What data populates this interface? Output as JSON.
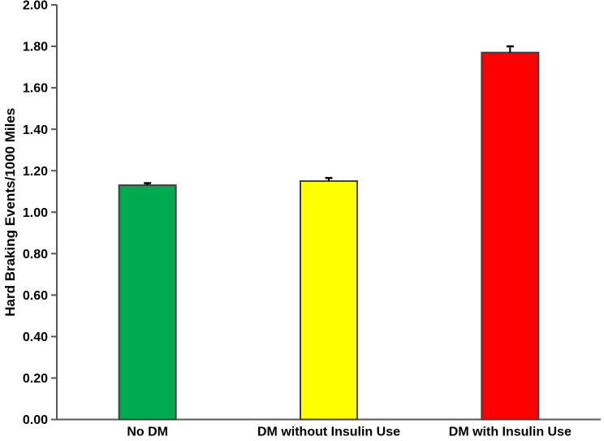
{
  "chart_data": {
    "type": "bar",
    "title": "",
    "xlabel": "",
    "ylabel": "Hard Braking Events/1000 Miles",
    "categories": [
      "No DM",
      "DM without Insulin Use",
      "DM with Insulin Use"
    ],
    "values": [
      1.13,
      1.15,
      1.77
    ],
    "errors_upper": [
      0.01,
      0.015,
      0.03
    ],
    "bar_colors": [
      "#00AB50",
      "#FFFF00",
      "#FF0000"
    ],
    "bar_border_color": "#404040",
    "axis_color": "#595959",
    "tick_label_color": "#000000",
    "category_label_color": "#000000",
    "error_bar_color": "#000000",
    "ylim": [
      0.0,
      2.0
    ],
    "ytick_step": 0.2,
    "ytick_labels": [
      "0.00",
      "0.20",
      "0.40",
      "0.60",
      "0.80",
      "1.00",
      "1.20",
      "1.40",
      "1.60",
      "1.80",
      "2.00"
    ],
    "grid": false,
    "legend": false,
    "background": "#ffffff"
  }
}
